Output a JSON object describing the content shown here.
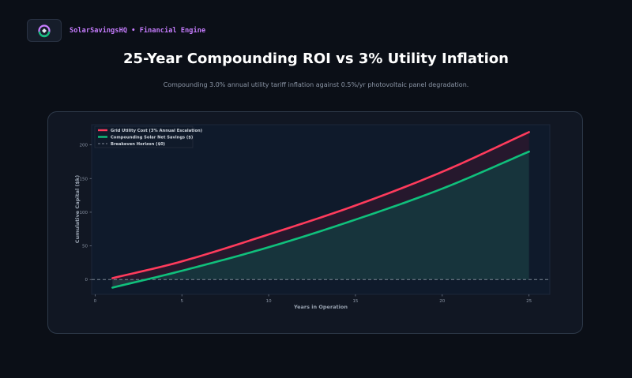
{
  "header": {
    "brand_label": "SolarSavingsHQ • Financial Engine",
    "logo_icon": "solar-cycle-logo-icon"
  },
  "page": {
    "title": "25-Year Compounding ROI vs 3% Utility Inflation",
    "subtitle": "Compounding 3.0% annual utility tariff inflation against 0.5%/yr photovoltaic panel degradation."
  },
  "colors": {
    "grid": "#ff3b5c",
    "solar": "#10c07c",
    "breakeven": "#7f8896",
    "plot_bg": "#0f1a2b",
    "text": "#9aa4b2"
  },
  "chart_data": {
    "type": "line",
    "xlabel": "Years in Operation",
    "ylabel": "Cumulative Capital ($k)",
    "xlim": [
      -0.2,
      26.2
    ],
    "ylim": [
      -22,
      230
    ],
    "x_ticks": [
      0,
      5,
      10,
      15,
      20,
      25
    ],
    "y_ticks": [
      0,
      50,
      100,
      150,
      200
    ],
    "legend_position": "top-left",
    "grid": false,
    "x": [
      1,
      5,
      10,
      15,
      20,
      25
    ],
    "series": [
      {
        "name": "Grid Utility Cost (3% Annual Escalation)",
        "color": "#ff3b5c",
        "values": [
          2,
          27,
          67,
          110,
          160,
          219
        ]
      },
      {
        "name": "Compounding Solar Net Savings ($)",
        "color": "#10c07c",
        "values": [
          -12,
          13,
          48,
          89,
          135,
          190
        ]
      }
    ],
    "reference_line": {
      "name": "Breakeven Horizon ($0)",
      "value": 0,
      "style": "dashed"
    }
  }
}
